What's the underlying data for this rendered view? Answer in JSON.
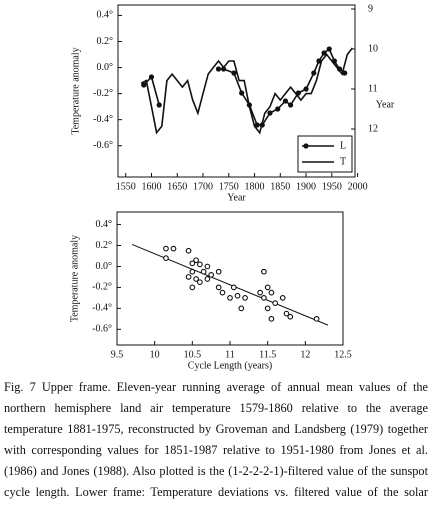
{
  "chart_data": [
    {
      "type": "line",
      "xlim": [
        1535,
        1995
      ],
      "xticks": [
        1550,
        1600,
        1650,
        1700,
        1750,
        1800,
        1850,
        1900,
        1950,
        2000
      ],
      "ylim": [
        -0.84,
        0.48
      ],
      "yticks": [
        {
          "value": 0.4,
          "label": "0.4°"
        },
        {
          "value": 0.2,
          "label": "0.2°"
        },
        {
          "value": 0.0,
          "label": "0.0°"
        },
        {
          "value": -0.2,
          "label": "-0.2°"
        },
        {
          "value": -0.4,
          "label": "-0.4°"
        },
        {
          "value": -0.6,
          "label": "-0.6°"
        }
      ],
      "y2lim": [
        8.9,
        13.2
      ],
      "y2_inverted": true,
      "y2ticks": [
        9,
        10,
        11,
        12
      ],
      "xlabel": "Year",
      "ylabel": "Temperature anomaly",
      "y2label": "Year",
      "legend": "lower right",
      "grid": false,
      "series": [
        {
          "name": "L",
          "color": "#111",
          "marker": true,
          "axis": "y2",
          "x": [
            1585,
            1600,
            1615,
            1672,
            1730,
            1740,
            1760,
            1775,
            1790,
            1805,
            1815,
            1830,
            1845,
            1860,
            1870,
            1885,
            1900,
            1915,
            1925,
            1935,
            1945,
            1955,
            1965,
            1975
          ],
          "values": [
            10.9,
            10.7,
            11.4,
            null,
            10.5,
            10.5,
            10.6,
            11.1,
            11.4,
            11.9,
            11.9,
            11.6,
            11.5,
            11.3,
            11.4,
            11.1,
            11.0,
            10.6,
            10.3,
            10.1,
            10.0,
            10.3,
            10.5,
            10.6
          ]
        },
        {
          "name": "T",
          "color": "#111",
          "marker": false,
          "x": [
            1580,
            1590,
            1600,
            1610,
            1620,
            1630,
            1640,
            1650,
            1660,
            1670,
            1680,
            1690,
            1700,
            1710,
            1720,
            1730,
            1740,
            1750,
            1760,
            1770,
            1780,
            1790,
            1800,
            1810,
            1820,
            1830,
            1840,
            1850,
            1860,
            1870,
            1880,
            1890,
            1900,
            1910,
            1920,
            1930,
            1940,
            1950,
            1960,
            1970,
            1980,
            1990
          ],
          "values": [
            -0.12,
            -0.1,
            -0.3,
            -0.5,
            -0.45,
            -0.1,
            -0.05,
            -0.1,
            -0.15,
            -0.1,
            -0.25,
            -0.35,
            -0.2,
            -0.05,
            0.0,
            0.05,
            0.0,
            0.05,
            0.05,
            -0.1,
            -0.1,
            -0.3,
            -0.45,
            -0.5,
            -0.35,
            -0.3,
            -0.2,
            -0.25,
            -0.2,
            -0.15,
            -0.2,
            -0.25,
            -0.2,
            -0.2,
            -0.1,
            0.05,
            0.1,
            0.05,
            0.0,
            -0.05,
            0.1,
            0.15
          ]
        }
      ]
    },
    {
      "type": "scatter",
      "xlim": [
        9.5,
        12.5
      ],
      "xticks": [
        9.5,
        10,
        10.5,
        11,
        11.5,
        12,
        12.5
      ],
      "ylim": [
        -0.75,
        0.52
      ],
      "yticks": [
        {
          "value": 0.4,
          "label": "0.4°"
        },
        {
          "value": 0.2,
          "label": "0.2°"
        },
        {
          "value": 0.0,
          "label": "0.0°"
        },
        {
          "value": -0.2,
          "label": "-0.2°"
        },
        {
          "value": -0.4,
          "label": "-0.4°"
        },
        {
          "value": -0.6,
          "label": "-0.6°"
        }
      ],
      "xlabel": "Cycle Length (years)",
      "ylabel": "Temperature anomaly",
      "grid": false,
      "series": [
        {
          "color": "#111",
          "x": [
            10.15,
            10.25,
            10.15,
            10.45,
            10.5,
            10.55,
            10.5,
            10.6,
            10.7,
            10.65,
            10.75,
            10.55,
            10.45,
            10.6,
            10.5,
            10.7,
            10.85,
            10.9,
            11.05,
            11.0,
            11.1,
            11.2,
            11.15,
            11.45,
            11.5,
            11.4,
            11.55,
            11.6,
            11.5,
            11.55,
            11.7,
            11.75,
            11.8,
            11.45,
            12.15,
            10.85
          ],
          "values": [
            0.17,
            0.17,
            0.08,
            0.15,
            0.03,
            0.06,
            -0.05,
            0.02,
            0.0,
            -0.05,
            -0.08,
            -0.12,
            -0.1,
            -0.15,
            -0.2,
            -0.12,
            -0.2,
            -0.25,
            -0.2,
            -0.3,
            -0.28,
            -0.3,
            -0.4,
            -0.05,
            -0.2,
            -0.25,
            -0.25,
            -0.35,
            -0.4,
            -0.5,
            -0.3,
            -0.45,
            -0.48,
            -0.3,
            -0.5,
            -0.05
          ]
        }
      ],
      "trend": {
        "x": [
          9.7,
          12.3
        ],
        "values": [
          0.21,
          -0.56
        ]
      }
    }
  ],
  "caption": "Fig. 7 Upper frame. Eleven-year running average of annual mean values of the northern hemisphere land air temperature 1579-1860 relative to the average temperature 1881-1975, reconstructed by Groveman and Landsberg (1979) together with corresponding values for 1851-1987 relative to 1951-1980 from Jones et al. (1986) and Jones (1988). Also plotted is the (1-2-2-2-1)-filtered value of the sunspot cycle length. Lower frame: Temperature deviations vs. filtered value of the solar cycle length"
}
